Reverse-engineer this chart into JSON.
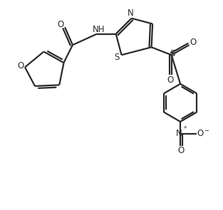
{
  "bg_color": "#ffffff",
  "line_color": "#2a2a2a",
  "line_width": 1.6,
  "font_size": 8.5,
  "fig_width": 3.13,
  "fig_height": 2.95,
  "dpi": 100,
  "xlim": [
    0,
    10
  ],
  "ylim": [
    0,
    9.4
  ]
}
